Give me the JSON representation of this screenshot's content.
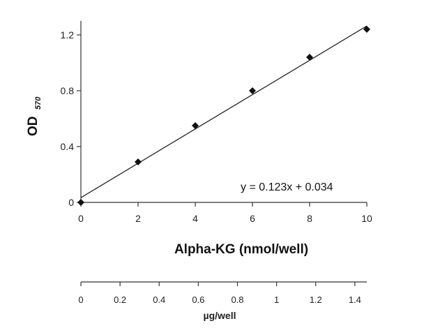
{
  "chart_data": {
    "type": "scatter",
    "x": [
      0,
      2,
      4,
      6,
      8,
      10
    ],
    "y": [
      0.0,
      0.29,
      0.55,
      0.8,
      1.04,
      1.24
    ],
    "xlim": [
      0,
      10
    ],
    "ylim": [
      0,
      1.3
    ],
    "xticks": [
      "0",
      "2",
      "4",
      "6",
      "8",
      "10"
    ],
    "yticks": [
      "0",
      "0.4",
      "0.8",
      "1.2"
    ],
    "xlabel": "Alpha-KG (nmol/well)",
    "ylabel": "OD",
    "ylabel_subscript": "570",
    "trendline": {
      "slope": 0.123,
      "intercept": 0.034,
      "label": "y = 0.123x + 0.034"
    },
    "secondary_axis": {
      "xlim": [
        0,
        1.461
      ],
      "ticks": [
        "0",
        "0.2",
        "0.4",
        "0.6",
        "0.8",
        "1",
        "1.2",
        "1.4"
      ],
      "label": "µg/well"
    },
    "grid": false,
    "marker": "diamond",
    "color": "#111111"
  }
}
